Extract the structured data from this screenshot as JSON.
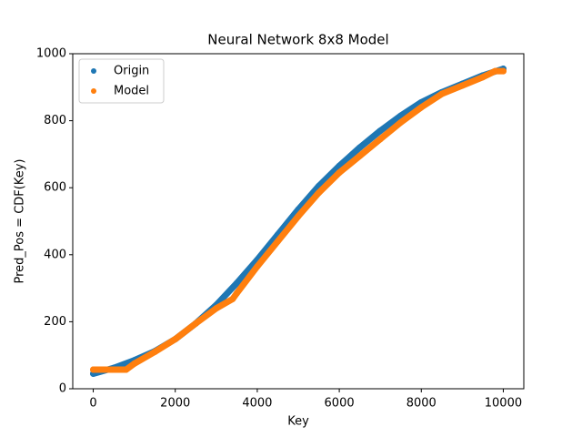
{
  "chart_data": {
    "type": "scatter",
    "title": "Neural Network 8x8 Model",
    "x_label": "Key",
    "y_label": "Pred_Pos = CDF(Key)",
    "series": [
      {
        "name": "Origin",
        "color": "#1f77b4",
        "x": [
          0,
          500,
          1000,
          1500,
          2000,
          2500,
          3000,
          3500,
          4000,
          4500,
          5000,
          5500,
          6000,
          6500,
          7000,
          7500,
          8000,
          8500,
          9000,
          9500,
          10000
        ],
        "values": [
          45,
          62,
          85,
          112,
          148,
          195,
          250,
          315,
          385,
          460,
          535,
          605,
          665,
          720,
          770,
          815,
          855,
          885,
          910,
          935,
          955
        ]
      },
      {
        "name": "Model",
        "color": "#ff7f0e",
        "x": [
          0,
          400,
          800,
          1000,
          1500,
          2000,
          2500,
          3000,
          3400,
          3500,
          4000,
          4500,
          5000,
          5500,
          6000,
          6500,
          7000,
          7500,
          8000,
          8500,
          9000,
          9500,
          9800,
          10000
        ],
        "values": [
          57,
          57,
          57,
          75,
          110,
          148,
          195,
          240,
          268,
          285,
          365,
          440,
          515,
          585,
          645,
          695,
          745,
          795,
          840,
          880,
          905,
          930,
          948,
          948
        ]
      }
    ],
    "xlim": [
      -500,
      10500
    ],
    "ylim": [
      0,
      1000
    ],
    "xticks": [
      0,
      2000,
      4000,
      6000,
      8000,
      10000
    ],
    "yticks": [
      0,
      200,
      400,
      600,
      800,
      1000
    ],
    "legend": "upper left",
    "grid": false
  }
}
